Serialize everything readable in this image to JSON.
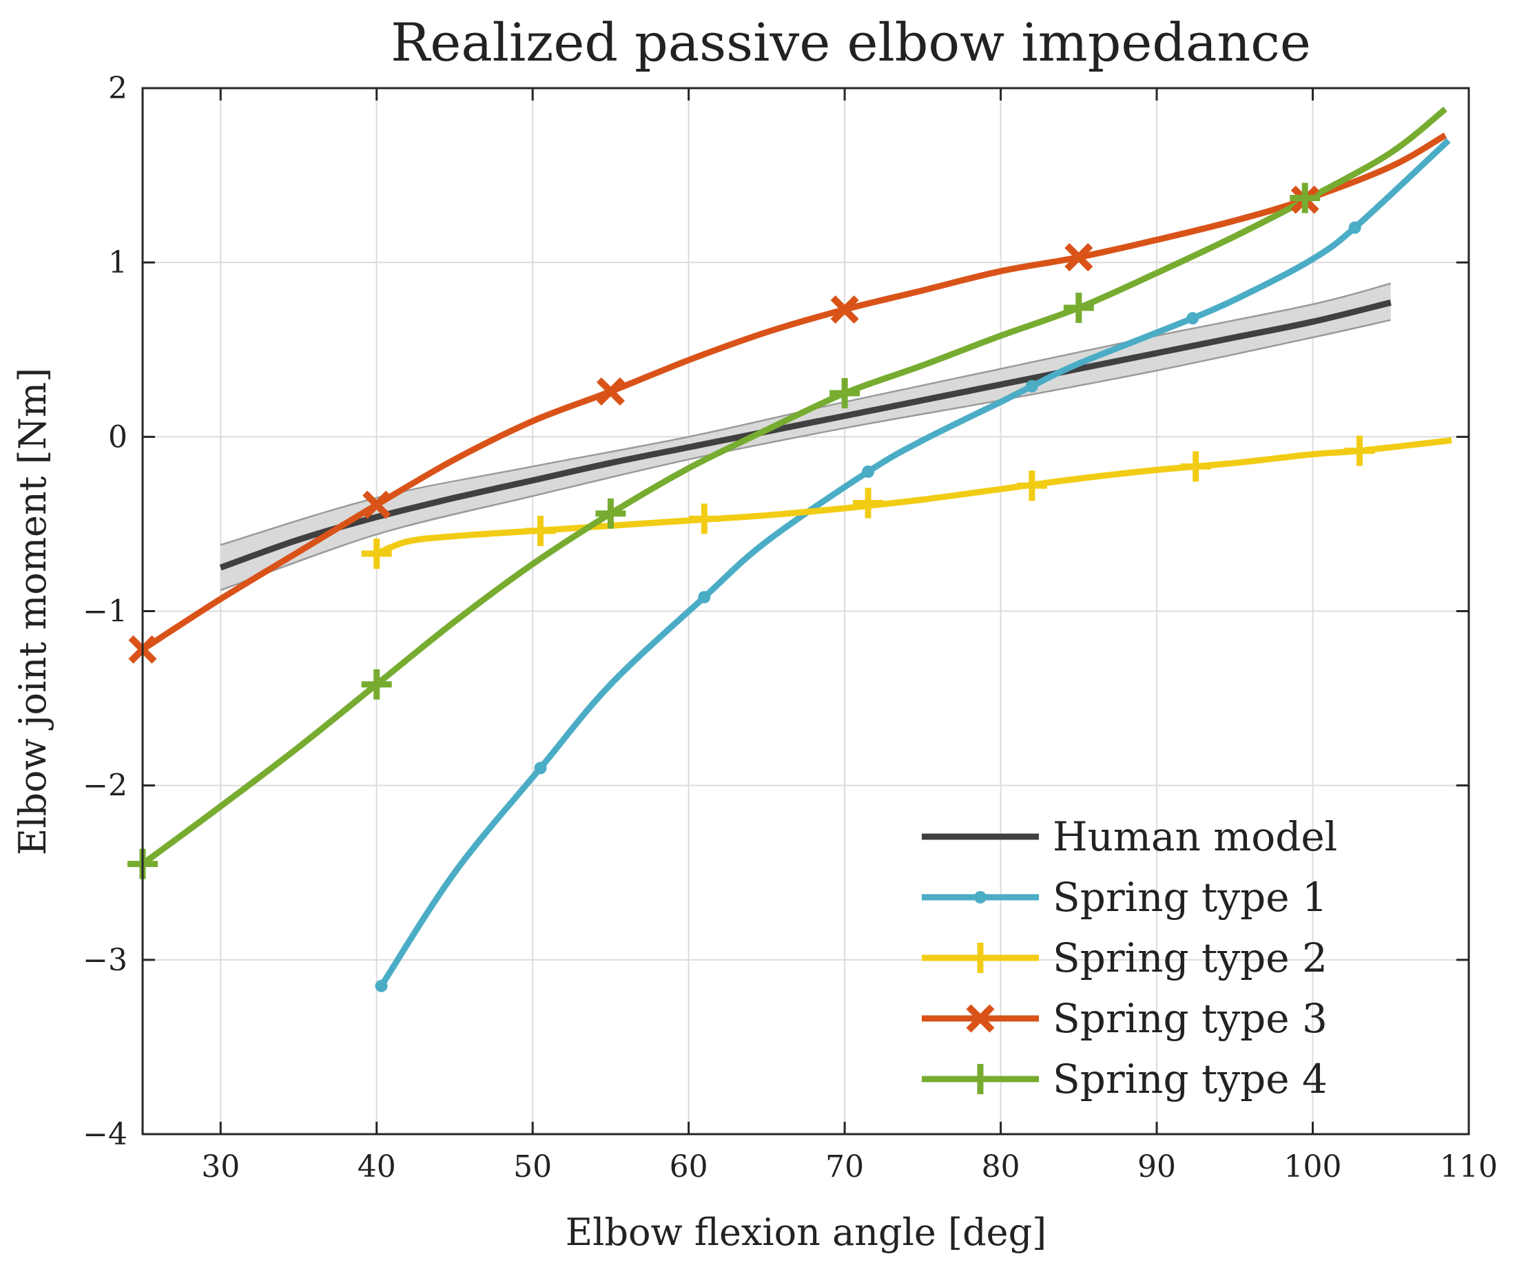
{
  "chart_data": {
    "type": "line",
    "title": "Realized passive elbow impedance",
    "xlabel": "Elbow flexion angle [deg]",
    "ylabel": "Elbow joint moment [Nm]",
    "xlim": [
      25,
      110
    ],
    "ylim": [
      -4,
      2
    ],
    "grid": true,
    "legend_position": "bottom-right",
    "xticks": [
      30,
      40,
      50,
      60,
      70,
      80,
      90,
      100,
      110
    ],
    "yticks": [
      -4,
      -3,
      -2,
      -1,
      0,
      1,
      2
    ],
    "xtick_labels": [
      "30",
      "40",
      "50",
      "60",
      "70",
      "80",
      "90",
      "100",
      "110"
    ],
    "ytick_labels": [
      "−4",
      "−3",
      "−2",
      "−1",
      "0",
      "1",
      "2"
    ],
    "band": {
      "name": "Human model range",
      "color": "#d9d9d9",
      "x": [
        30,
        40,
        50,
        60,
        70,
        80,
        90,
        100,
        105
      ],
      "upper": [
        -0.62,
        -0.35,
        -0.17,
        0.0,
        0.2,
        0.39,
        0.58,
        0.76,
        0.88
      ],
      "lower": [
        -0.88,
        -0.56,
        -0.34,
        -0.13,
        0.05,
        0.21,
        0.38,
        0.57,
        0.67
      ]
    },
    "series": [
      {
        "name": "Human model",
        "color": "#404040",
        "marker": "none",
        "x": [
          30,
          35,
          40,
          45,
          50,
          55,
          60,
          65,
          70,
          75,
          80,
          85,
          90,
          95,
          100,
          105
        ],
        "y": [
          -0.75,
          -0.59,
          -0.46,
          -0.35,
          -0.25,
          -0.15,
          -0.06,
          0.03,
          0.12,
          0.21,
          0.3,
          0.39,
          0.48,
          0.57,
          0.66,
          0.77
        ],
        "marker_x": [],
        "marker_y": []
      },
      {
        "name": "Spring type 1",
        "color": "#4bacc6",
        "marker": "dot",
        "x": [
          40.3,
          45,
          50.5,
          55,
          61,
          65,
          71.5,
          75,
          80,
          82,
          85,
          92.3,
          96,
          100,
          102.7,
          108.7
        ],
        "y": [
          -3.15,
          -2.5,
          -1.9,
          -1.42,
          -0.92,
          -0.6,
          -0.2,
          -0.02,
          0.2,
          0.29,
          0.42,
          0.68,
          0.83,
          1.02,
          1.2,
          1.7
        ],
        "marker_x": [
          40.3,
          50.5,
          61,
          71.5,
          82,
          92.3,
          102.7
        ],
        "marker_y": [
          -3.15,
          -1.9,
          -0.92,
          -0.2,
          0.29,
          0.68,
          1.2
        ]
      },
      {
        "name": "Spring type 2",
        "color": "#f2cc14",
        "marker": "plus",
        "x": [
          40,
          42,
          45,
          50,
          55,
          60,
          65,
          70,
          75,
          80,
          85,
          90,
          95,
          100,
          103,
          108.9
        ],
        "y": [
          -0.67,
          -0.6,
          -0.57,
          -0.54,
          -0.51,
          -0.48,
          -0.45,
          -0.41,
          -0.36,
          -0.3,
          -0.24,
          -0.19,
          -0.15,
          -0.1,
          -0.08,
          -0.02
        ],
        "marker_x": [
          40,
          50.5,
          61,
          71.5,
          82,
          92.5,
          103
        ],
        "marker_y": [
          -0.67,
          -0.54,
          -0.47,
          -0.38,
          -0.28,
          -0.17,
          -0.08
        ]
      },
      {
        "name": "Spring type 3",
        "color": "#d95319",
        "marker": "x",
        "x": [
          25,
          30,
          35,
          40,
          45,
          50,
          55,
          60,
          65,
          70,
          75,
          80,
          85,
          90,
          95,
          99.5,
          105,
          108.5
        ],
        "y": [
          -1.22,
          -0.93,
          -0.66,
          -0.39,
          -0.13,
          0.09,
          0.26,
          0.44,
          0.6,
          0.73,
          0.84,
          0.95,
          1.03,
          1.13,
          1.24,
          1.36,
          1.55,
          1.73
        ],
        "marker_x": [
          25,
          40,
          55,
          70,
          85,
          99.5
        ],
        "marker_y": [
          -1.22,
          -0.39,
          0.26,
          0.73,
          1.03,
          1.36
        ]
      },
      {
        "name": "Spring type 4",
        "color": "#77ac30",
        "marker": "plus",
        "x": [
          25,
          30,
          35,
          40,
          45,
          50,
          55,
          60,
          65,
          70,
          75,
          80,
          85,
          90,
          95,
          100,
          105,
          108.5
        ],
        "y": [
          -2.45,
          -2.12,
          -1.78,
          -1.42,
          -1.06,
          -0.73,
          -0.44,
          -0.18,
          0.04,
          0.25,
          0.41,
          0.58,
          0.74,
          0.94,
          1.15,
          1.38,
          1.63,
          1.88
        ],
        "marker_x": [
          25,
          40,
          55,
          70,
          85,
          99.5
        ],
        "marker_y": [
          -2.45,
          -1.42,
          -0.44,
          0.25,
          0.74,
          1.37
        ]
      }
    ]
  }
}
